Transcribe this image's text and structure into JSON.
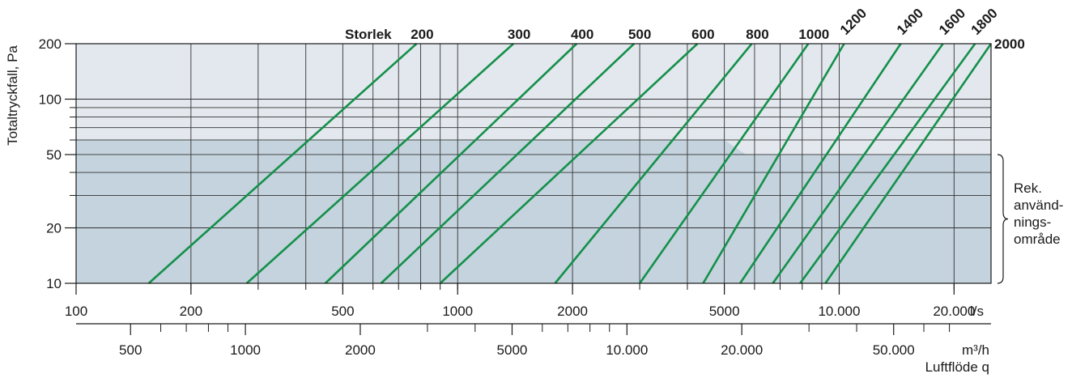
{
  "chart_data": {
    "type": "line",
    "title": "",
    "ylabel": "Totaltryckfall, Pa",
    "xlabel": "Luftflöde q",
    "size_prefix": "Storlek",
    "x_unit_primary": "l/s",
    "x_unit_secondary": "m³/h",
    "x_scale": "log",
    "y_scale": "log",
    "xlim": [
      100,
      25000
    ],
    "ylim": [
      10,
      200
    ],
    "grid": true,
    "x_ticks": [
      {
        "value": 100,
        "label": "100"
      },
      {
        "value": 200,
        "label": "200"
      },
      {
        "value": 500,
        "label": "500"
      },
      {
        "value": 1000,
        "label": "1000"
      },
      {
        "value": 2000,
        "label": "2000"
      },
      {
        "value": 5000,
        "label": "5000"
      },
      {
        "value": 10000,
        "label": "10.000"
      },
      {
        "value": 20000,
        "label": "20.000"
      }
    ],
    "x_grid": [
      200,
      300,
      400,
      500,
      600,
      700,
      800,
      900,
      1000,
      2000,
      3000,
      4000,
      5000,
      6000,
      7000,
      8000,
      9000,
      10000,
      20000
    ],
    "m3h_ticks": [
      {
        "value": 500,
        "label": "500"
      },
      {
        "value": 1000,
        "label": "1000"
      },
      {
        "value": 2000,
        "label": "2000"
      },
      {
        "value": 5000,
        "label": "5000"
      },
      {
        "value": 10000,
        "label": "10.000"
      },
      {
        "value": 20000,
        "label": "20.000"
      },
      {
        "value": 50000,
        "label": "50.000"
      }
    ],
    "m3h_minor": [
      600,
      700,
      800,
      900,
      3000,
      4000,
      6000,
      7000,
      8000,
      9000,
      30000,
      40000,
      60000,
      70000
    ],
    "y_ticks": [
      {
        "value": 10,
        "label": "10"
      },
      {
        "value": 20,
        "label": "20"
      },
      {
        "value": 50,
        "label": "50"
      },
      {
        "value": 100,
        "label": "100"
      },
      {
        "value": 200,
        "label": "200"
      }
    ],
    "y_grid": [
      20,
      30,
      40,
      50,
      60,
      70,
      80,
      90,
      100
    ],
    "recommended_range": {
      "label_lines": [
        "Rek.",
        "använd-",
        "nings-",
        "område"
      ],
      "upper_pa": 60,
      "upper_pa_high_flow": 50,
      "step_flow": [
        5000,
        5700
      ]
    },
    "series_color": "#14904a",
    "background_color": "#e3e8ee",
    "recommended_color": "#c4d3dd",
    "series": [
      {
        "size": "200",
        "x": [
          155,
          780
        ],
        "y": [
          10,
          200
        ]
      },
      {
        "size": "300",
        "x": [
          280,
          1400
        ],
        "y": [
          10,
          200
        ]
      },
      {
        "size": "400",
        "x": [
          450,
          2050
        ],
        "y": [
          10,
          200
        ]
      },
      {
        "size": "500",
        "x": [
          630,
          2900
        ],
        "y": [
          10,
          200
        ]
      },
      {
        "size": "600",
        "x": [
          900,
          4250
        ],
        "y": [
          10,
          200
        ]
      },
      {
        "size": "800",
        "x": [
          1800,
          5900
        ],
        "y": [
          10,
          200
        ]
      },
      {
        "size": "1000",
        "x": [
          3000,
          8300
        ],
        "y": [
          10,
          200
        ]
      },
      {
        "size": "1200",
        "x": [
          4400,
          10300
        ],
        "y": [
          10,
          200
        ]
      },
      {
        "size": "1400",
        "x": [
          5500,
          14500
        ],
        "y": [
          10,
          200
        ]
      },
      {
        "size": "1600",
        "x": [
          6700,
          18700
        ],
        "y": [
          10,
          200
        ]
      },
      {
        "size": "1800",
        "x": [
          7900,
          22700
        ],
        "y": [
          10,
          200
        ]
      },
      {
        "size": "2000",
        "x": [
          9200,
          25000
        ],
        "y": [
          10,
          200
        ]
      }
    ]
  }
}
